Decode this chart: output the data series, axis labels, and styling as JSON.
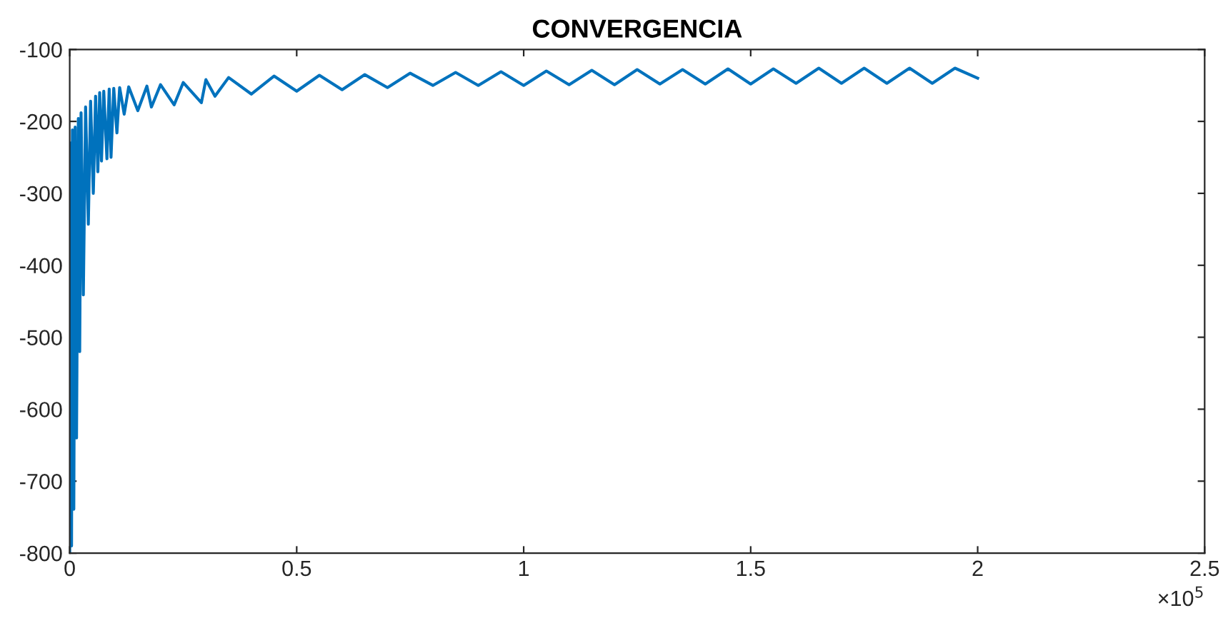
{
  "chart_data": {
    "type": "line",
    "title": "CONVERGENCIA",
    "series": [
      {
        "color": "#0072bd",
        "x": [
          0,
          0.002,
          0.004,
          0.006,
          0.009,
          0.012,
          0.015,
          0.019,
          0.022,
          0.025,
          0.03,
          0.035,
          0.041,
          0.046,
          0.052,
          0.057,
          0.062,
          0.066,
          0.07,
          0.075,
          0.082,
          0.087,
          0.091,
          0.097,
          0.104,
          0.11,
          0.12,
          0.13,
          0.15,
          0.17,
          0.18,
          0.2,
          0.23,
          0.25,
          0.29,
          0.3,
          0.32,
          0.35,
          0.4,
          0.45,
          0.5,
          0.55,
          0.6,
          0.65,
          0.7,
          0.75,
          0.8,
          0.85,
          0.9,
          0.95,
          1.0,
          1.05,
          1.1,
          1.15,
          1.2,
          1.25,
          1.3,
          1.35,
          1.4,
          1.45,
          1.5,
          1.55,
          1.6,
          1.65,
          1.7,
          1.75,
          1.8,
          1.85,
          1.9,
          1.95,
          2.0
        ],
        "values": [
          -800,
          -230,
          -790,
          -212,
          -739,
          -208,
          -640,
          -196,
          -520,
          -188,
          -441,
          -180,
          -343,
          -172,
          -300,
          -165,
          -270,
          -160,
          -255,
          -158,
          -252,
          -155,
          -250,
          -154,
          -216,
          -153,
          -190,
          -152,
          -185,
          -151,
          -180,
          -149,
          -177,
          -146,
          -174,
          -142,
          -165,
          -139,
          -162,
          -137,
          -158,
          -136,
          -156,
          -135,
          -153,
          -133,
          -150,
          -132,
          -150,
          -131,
          -150,
          -130,
          -149,
          -129,
          -149,
          -128,
          -148,
          -128,
          -148,
          -127,
          -148,
          -127,
          -147,
          -126,
          -147,
          -126,
          -147,
          -126,
          -147,
          -126,
          -140
        ]
      }
    ],
    "xlim": [
      0,
      2.5
    ],
    "xticks": [
      0,
      0.5,
      1,
      1.5,
      2,
      2.5
    ],
    "ylim": [
      -800,
      -100
    ],
    "yticks": [
      -800,
      -700,
      -600,
      -500,
      -400,
      -300,
      -200,
      -100
    ],
    "annotations": [
      "×10$^{5}$"
    ],
    "grid": false,
    "legend": false
  }
}
